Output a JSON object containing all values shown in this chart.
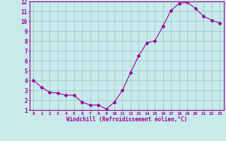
{
  "x": [
    0,
    1,
    2,
    3,
    4,
    5,
    6,
    7,
    8,
    9,
    10,
    11,
    12,
    13,
    14,
    15,
    16,
    17,
    18,
    19,
    20,
    21,
    22,
    23
  ],
  "y": [
    4.0,
    3.3,
    2.8,
    2.7,
    2.5,
    2.5,
    1.8,
    1.5,
    1.5,
    1.1,
    1.8,
    3.0,
    4.8,
    6.5,
    7.8,
    8.0,
    9.5,
    11.1,
    11.8,
    11.9,
    11.3,
    10.5,
    10.1,
    9.8
  ],
  "line_color": "#990099",
  "marker": "D",
  "marker_size": 2.0,
  "bg_color": "#c8eaea",
  "grid_color": "#99cccc",
  "xlabel": "Windchill (Refroidissement éolien,°C)",
  "xlabel_color": "#990099",
  "tick_color": "#990099",
  "xlim": [
    -0.5,
    23.5
  ],
  "ylim": [
    1,
    12
  ],
  "yticks": [
    1,
    2,
    3,
    4,
    5,
    6,
    7,
    8,
    9,
    10,
    11,
    12
  ],
  "xticks": [
    0,
    1,
    2,
    3,
    4,
    5,
    6,
    7,
    8,
    9,
    10,
    11,
    12,
    13,
    14,
    15,
    16,
    17,
    18,
    19,
    20,
    21,
    22,
    23
  ],
  "spine_color": "#990099",
  "figsize": [
    3.2,
    2.0
  ],
  "dpi": 100
}
